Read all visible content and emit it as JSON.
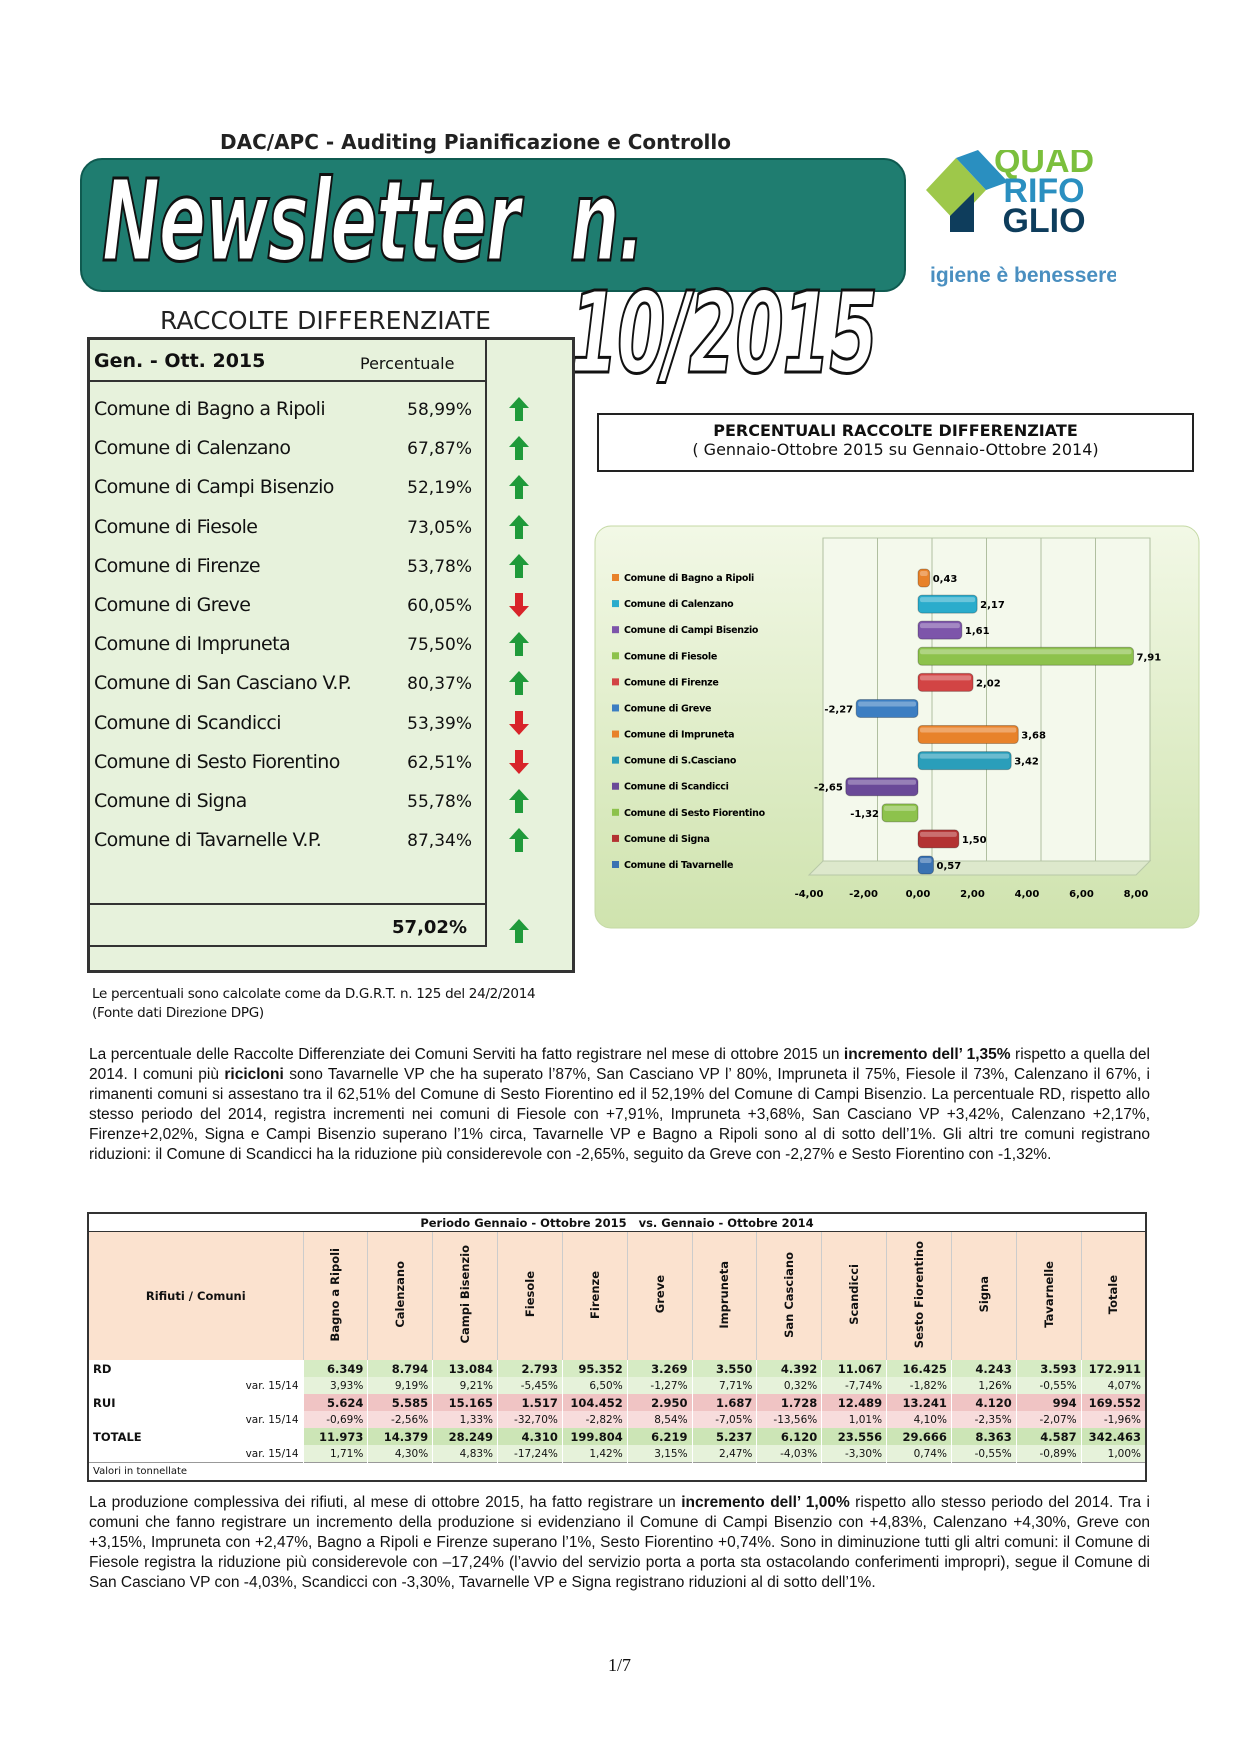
{
  "header": {
    "department": "DAC/APC - Auditing Pianificazione e Controllo",
    "newsletter": "Newsletter",
    "issue": "n. 10/2015",
    "logo_lines": [
      "QUAD",
      "RIFO",
      "GLIO"
    ],
    "logo_tagline": "igiene è benessere"
  },
  "table_1": {
    "title": "RACCOLTE DIFFERENZIATE",
    "period": "Gen. - Ott. 2015",
    "column": "Percentuale",
    "rows": [
      {
        "name": "Comune di Bagno a Ripoli",
        "value": "58,99%",
        "trend": "up"
      },
      {
        "name": "Comune di Calenzano",
        "value": "67,87%",
        "trend": "up"
      },
      {
        "name": "Comune di Campi Bisenzio",
        "value": "52,19%",
        "trend": "up"
      },
      {
        "name": "Comune di Fiesole",
        "value": "73,05%",
        "trend": "up"
      },
      {
        "name": "Comune di Firenze",
        "value": "53,78%",
        "trend": "up"
      },
      {
        "name": "Comune di Greve",
        "value": "60,05%",
        "trend": "down"
      },
      {
        "name": "Comune di Impruneta",
        "value": "75,50%",
        "trend": "up"
      },
      {
        "name": "Comune di San Casciano V.P.",
        "value": "80,37%",
        "trend": "up"
      },
      {
        "name": "Comune di Scandicci",
        "value": "53,39%",
        "trend": "down"
      },
      {
        "name": "Comune di Sesto Fiorentino",
        "value": "62,51%",
        "trend": "down"
      },
      {
        "name": "Comune di Signa",
        "value": "55,78%",
        "trend": "up"
      },
      {
        "name": "Comune di Tavarnelle V.P.",
        "value": "87,34%",
        "trend": "up"
      }
    ],
    "total": {
      "value": "57,02%",
      "trend": "up"
    },
    "note": [
      "Le percentuali sono calcolate come da D.G.R.T. n. 125 del 24/2/2014",
      "(Fonte dati Direzione DPG)"
    ]
  },
  "chart_data": {
    "type": "bar",
    "orientation": "horizontal",
    "title": "PERCENTUALI RACCOLTE DIFFERENZIATE",
    "subtitle": "( Gennaio-Ottobre 2015 su Gennaio-Ottobre 2014)",
    "categories": [
      "Comune di Bagno a Ripoli",
      "Comune di Calenzano",
      "Comune di Campi Bisenzio",
      "Comune di Fiesole",
      "Comune di Firenze",
      "Comune di Greve",
      "Comune di Impruneta",
      "Comune di S.Casciano",
      "Comune di Scandicci",
      "Comune di Sesto Fiorentino",
      "Comune di Signa",
      "Comune di Tavarnelle"
    ],
    "values": [
      0.43,
      2.17,
      1.61,
      7.91,
      2.02,
      -2.27,
      3.68,
      3.42,
      -2.65,
      -1.32,
      1.5,
      0.57
    ],
    "value_labels": [
      "0,43",
      "2,17",
      "1,61",
      "7,91",
      "2,02",
      "-2,27",
      "3,68",
      "3,42",
      "-2,65",
      "-1,32",
      "1,50",
      "0,57"
    ],
    "colors": [
      "#e8822a",
      "#2aaccc",
      "#7d55aa",
      "#8dc24c",
      "#d24444",
      "#3c7ec2",
      "#e8822a",
      "#2a9eba",
      "#6a4a98",
      "#8dc24c",
      "#b33232",
      "#3a72b2"
    ],
    "xlim": [
      -4,
      8
    ],
    "xticks": [
      {
        "value": -4,
        "label": "-4,00"
      },
      {
        "value": -2,
        "label": "-2,00"
      },
      {
        "value": 0,
        "label": "0,00"
      },
      {
        "value": 2,
        "label": "2,00"
      },
      {
        "value": 4,
        "label": "4,00"
      },
      {
        "value": 6,
        "label": "6,00"
      },
      {
        "value": 8,
        "label": "8,00"
      }
    ],
    "grid": true,
    "legend": "left"
  },
  "paragraph_1": [
    {
      "text": "La percentuale delle Raccolte Differenziate dei Comuni Serviti ha fatto registrare nel mese di ottobre 2015 un ",
      "bold": false
    },
    {
      "text": "incremento dell’ 1,35%",
      "bold": true
    },
    {
      "text": " rispetto a quella del 2014. I comuni più ",
      "bold": false
    },
    {
      "text": "ricicloni",
      "bold": true
    },
    {
      "text": " sono Tavarnelle VP che ha superato l’87%, San Casciano VP l’ 80%, Impruneta il 75%, Fiesole il 73%, Calenzano il 67%, i rimanenti comuni si assestano tra il 62,51% del Comune di Sesto Fiorentino ed il 52,19% del Comune di Campi Bisenzio. La percentuale RD, rispetto allo stesso periodo del 2014, registra incrementi nei comuni di Fiesole con +7,91%, Impruneta +3,68%, San Casciano VP +3,42%, Calenzano +2,17%, Firenze+2,02%, Signa e Campi Bisenzio superano l’1% circa, Tavarnelle VP e Bagno a Ripoli sono al di sotto dell’1%. Gli altri tre comuni registrano riduzioni: il Comune di Scandicci ha la riduzione più considerevole con -2,65%, seguito da Greve con -2,27% e Sesto Fiorentino con -1,32%.",
      "bold": false
    }
  ],
  "table_2": {
    "title": "Periodo Gennaio - Ottobre 2015   vs. Gennaio - Ottobre 2014",
    "corner": "Rifiuti / Comuni",
    "columns": [
      "Bagno a Ripoli",
      "Calenzano",
      "Campi Bisenzio",
      "Fiesole",
      "Firenze",
      "Greve",
      "Impruneta",
      "San Casciano",
      "Scandicci",
      "Sesto Fiorentino",
      "Signa",
      "Tavarnelle",
      "Totale"
    ],
    "rows": [
      {
        "label": "RD",
        "color": "#d6ebc4",
        "cells": [
          "6.349",
          "8.794",
          "13.084",
          "2.793",
          "95.352",
          "3.269",
          "3.550",
          "4.392",
          "11.067",
          "16.425",
          "4.243",
          "3.593",
          "172.911"
        ]
      },
      {
        "label": "var. 15/14",
        "color": "#e6f2da",
        "cells": [
          "3,93%",
          "9,19%",
          "9,21%",
          "-5,45%",
          "6,50%",
          "-1,27%",
          "7,71%",
          "0,32%",
          "-7,74%",
          "-1,82%",
          "1,26%",
          "-0,55%",
          "4,07%"
        ]
      },
      {
        "label": "RUI",
        "color": "#f0c4c4",
        "cells": [
          "5.624",
          "5.585",
          "15.165",
          "1.517",
          "104.452",
          "2.950",
          "1.687",
          "1.728",
          "12.489",
          "13.241",
          "4.120",
          "994",
          "169.552"
        ]
      },
      {
        "label": "var. 15/14",
        "color": "#f7dcdc",
        "cells": [
          "-0,69%",
          "-2,56%",
          "1,33%",
          "-32,70%",
          "-2,82%",
          "8,54%",
          "-7,05%",
          "-13,56%",
          "1,01%",
          "4,10%",
          "-2,35%",
          "-2,07%",
          "-1,96%"
        ]
      },
      {
        "label": "TOTALE",
        "color": "#cce5b6",
        "cells": [
          "11.973",
          "14.379",
          "28.249",
          "4.310",
          "199.804",
          "6.219",
          "5.237",
          "6.120",
          "23.556",
          "29.666",
          "8.363",
          "4.587",
          "342.463"
        ]
      },
      {
        "label": "var. 15/14",
        "color": "#e6f2da",
        "cells": [
          "1,71%",
          "4,30%",
          "4,83%",
          "-17,24%",
          "1,42%",
          "3,15%",
          "2,47%",
          "-4,03%",
          "-3,30%",
          "0,74%",
          "-0,55%",
          "-0,89%",
          "1,00%"
        ]
      }
    ],
    "footer": "Valori in tonnellate"
  },
  "paragraph_2": [
    {
      "text": "La produzione complessiva dei rifiuti, al mese di ottobre 2015, ha fatto registrare un ",
      "bold": false
    },
    {
      "text": "incremento dell’ 1,00%",
      "bold": true
    },
    {
      "text": " rispetto allo stesso periodo del 2014. Tra i comuni che fanno registrare un incremento della produzione si evidenziano il Comune di Campi Bisenzio con +4,83%, Calenzano +4,30%, Greve con +3,15%, Impruneta con +2,47%, Bagno a Ripoli e Firenze superano l’1%, Sesto Fiorentino +0,74%. Sono in diminuzione tutti gli altri comuni: il Comune di Fiesole registra la riduzione più considerevole con –17,24% (l’avvio del servizio porta a porta sta ostacolando conferimenti impropri), segue il Comune di San Casciano VP con -4,03%, Scandicci con -3,30%, Tavarnelle VP e Signa registrano riduzioni al di sotto dell’1%.",
      "bold": false
    }
  ],
  "page_number": "1/7"
}
